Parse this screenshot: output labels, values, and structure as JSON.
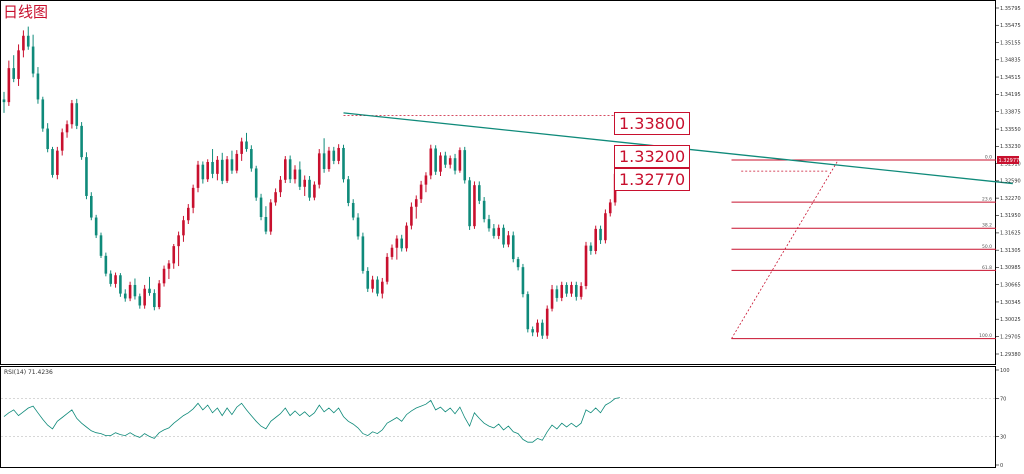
{
  "chart_data": [
    {
      "type": "candlestick",
      "title": "日线图",
      "colors": {
        "up": "#c8102e",
        "down": "#0f8a7a",
        "trendline": "#0f8a7a",
        "fib": "#c8102e"
      },
      "y_ticks": [
        "1.35795",
        "1.35475",
        "1.35155",
        "1.34835",
        "1.34515",
        "1.34195",
        "1.33875",
        "1.33550",
        "1.33230",
        "1.32910",
        "1.32590",
        "1.32270",
        "1.31950",
        "1.31625",
        "1.31305",
        "1.30985",
        "1.30665",
        "1.30345",
        "1.30025",
        "1.29705",
        "1.29380"
      ],
      "ylim": [
        1.2938,
        1.35795
      ],
      "current_price": "1.32977",
      "annotations": [
        "1.33800",
        "1.33200",
        "1.32770"
      ],
      "fib_levels": [
        {
          "label": "0.0",
          "price": 1.32977
        },
        {
          "label": "23.6",
          "price": 1.32195
        },
        {
          "label": "38.2",
          "price": 1.31712
        },
        {
          "label": "50.0",
          "price": 1.31321
        },
        {
          "label": "61.8",
          "price": 1.3093
        },
        {
          "label": "100.0",
          "price": 1.29665
        }
      ],
      "trendline": [
        {
          "x": 70,
          "y": 1.3385
        },
        {
          "x": 208,
          "y": 1.3254
        }
      ],
      "fib_start": {
        "x": 150,
        "y": 1.29665
      },
      "fib_end": {
        "x": 172,
        "y": 1.32977
      },
      "reference_lines": [
        {
          "x1": 70,
          "x2": 132,
          "y": 1.338
        },
        {
          "x1": 152,
          "x2": 170,
          "y": 1.3277
        }
      ],
      "candles": [
        [
          1.341,
          1.3424,
          1.3385,
          1.3405
        ],
        [
          1.3405,
          1.3482,
          1.3398,
          1.3468
        ],
        [
          1.3468,
          1.3492,
          1.3442,
          1.3448
        ],
        [
          1.3448,
          1.3512,
          1.3435,
          1.3501
        ],
        [
          1.3501,
          1.3538,
          1.3488,
          1.3528
        ],
        [
          1.3528,
          1.3545,
          1.3502,
          1.3508
        ],
        [
          1.3508,
          1.353,
          1.3451,
          1.3458
        ],
        [
          1.3458,
          1.347,
          1.3402,
          1.341
        ],
        [
          1.341,
          1.3415,
          1.335,
          1.3356
        ],
        [
          1.3356,
          1.3366,
          1.3312,
          1.3318
        ],
        [
          1.3318,
          1.3322,
          1.3265,
          1.327
        ],
        [
          1.327,
          1.3322,
          1.3262,
          1.3315
        ],
        [
          1.3315,
          1.3356,
          1.3306,
          1.3349
        ],
        [
          1.3349,
          1.3371,
          1.3339,
          1.3364
        ],
        [
          1.3364,
          1.3409,
          1.3356,
          1.3403
        ],
        [
          1.3403,
          1.3411,
          1.3355,
          1.3361
        ],
        [
          1.3361,
          1.3368,
          1.3298,
          1.3303
        ],
        [
          1.3303,
          1.3312,
          1.3225,
          1.3231
        ],
        [
          1.3231,
          1.3238,
          1.3186,
          1.3191
        ],
        [
          1.3191,
          1.3196,
          1.3153,
          1.3158
        ],
        [
          1.3158,
          1.3163,
          1.3116,
          1.312
        ],
        [
          1.312,
          1.3126,
          1.3082,
          1.3087
        ],
        [
          1.3087,
          1.3093,
          1.3063,
          1.3068
        ],
        [
          1.3068,
          1.3089,
          1.3061,
          1.3084
        ],
        [
          1.3084,
          1.3088,
          1.3044,
          1.305
        ],
        [
          1.305,
          1.3058,
          1.3035,
          1.3041
        ],
        [
          1.3041,
          1.3072,
          1.3036,
          1.3066
        ],
        [
          1.3066,
          1.3078,
          1.3039,
          1.3045
        ],
        [
          1.3045,
          1.305,
          1.3022,
          1.3028
        ],
        [
          1.3028,
          1.3066,
          1.3022,
          1.3059
        ],
        [
          1.3059,
          1.3081,
          1.3046,
          1.3051
        ],
        [
          1.3051,
          1.3058,
          1.3019,
          1.3025
        ],
        [
          1.3025,
          1.3075,
          1.3021,
          1.3069
        ],
        [
          1.3069,
          1.3102,
          1.3063,
          1.3096
        ],
        [
          1.3096,
          1.3112,
          1.3077,
          1.3106
        ],
        [
          1.3106,
          1.3142,
          1.3096,
          1.3138
        ],
        [
          1.3138,
          1.3165,
          1.3101,
          1.3158
        ],
        [
          1.3158,
          1.3194,
          1.3146,
          1.3186
        ],
        [
          1.3186,
          1.3216,
          1.3179,
          1.3209
        ],
        [
          1.3209,
          1.3252,
          1.3199,
          1.3246
        ],
        [
          1.3246,
          1.3296,
          1.3238,
          1.3289
        ],
        [
          1.3289,
          1.3295,
          1.3254,
          1.3262
        ],
        [
          1.3262,
          1.3299,
          1.3257,
          1.3294
        ],
        [
          1.3294,
          1.3318,
          1.3264,
          1.3272
        ],
        [
          1.3272,
          1.3305,
          1.326,
          1.3298
        ],
        [
          1.3298,
          1.3311,
          1.3253,
          1.3259
        ],
        [
          1.3259,
          1.3305,
          1.3255,
          1.3299
        ],
        [
          1.3299,
          1.3315,
          1.3272,
          1.3278
        ],
        [
          1.3278,
          1.3316,
          1.3273,
          1.3309
        ],
        [
          1.3309,
          1.3339,
          1.3296,
          1.3332
        ],
        [
          1.3332,
          1.3348,
          1.3313,
          1.3318
        ],
        [
          1.3318,
          1.3325,
          1.3276,
          1.3282
        ],
        [
          1.3282,
          1.3287,
          1.3222,
          1.3228
        ],
        [
          1.3228,
          1.3235,
          1.3186,
          1.3192
        ],
        [
          1.3192,
          1.3212,
          1.316,
          1.3165
        ],
        [
          1.3165,
          1.3225,
          1.3159,
          1.3219
        ],
        [
          1.3219,
          1.3245,
          1.3213,
          1.3238
        ],
        [
          1.3238,
          1.3268,
          1.3229,
          1.3261
        ],
        [
          1.3261,
          1.3305,
          1.3255,
          1.3299
        ],
        [
          1.3299,
          1.3306,
          1.3255,
          1.3262
        ],
        [
          1.3262,
          1.3288,
          1.3254,
          1.328
        ],
        [
          1.328,
          1.3295,
          1.3242,
          1.3248
        ],
        [
          1.3248,
          1.3269,
          1.3231,
          1.3261
        ],
        [
          1.3261,
          1.3268,
          1.3222,
          1.3228
        ],
        [
          1.3228,
          1.3258,
          1.3223,
          1.3252
        ],
        [
          1.3252,
          1.3318,
          1.3245,
          1.331
        ],
        [
          1.331,
          1.3338,
          1.3274,
          1.3281
        ],
        [
          1.3281,
          1.3322,
          1.3276,
          1.3315
        ],
        [
          1.3315,
          1.3322,
          1.329,
          1.3296
        ],
        [
          1.3296,
          1.3327,
          1.329,
          1.332
        ],
        [
          1.332,
          1.3326,
          1.3256,
          1.3262
        ],
        [
          1.3262,
          1.3268,
          1.3212,
          1.3218
        ],
        [
          1.3218,
          1.3225,
          1.3186,
          1.3191
        ],
        [
          1.3191,
          1.3199,
          1.315,
          1.3156
        ],
        [
          1.3156,
          1.3163,
          1.3087,
          1.3092
        ],
        [
          1.3092,
          1.3099,
          1.3053,
          1.3059
        ],
        [
          1.3059,
          1.3083,
          1.3052,
          1.3076
        ],
        [
          1.3076,
          1.3082,
          1.3045,
          1.305
        ],
        [
          1.305,
          1.3079,
          1.3041,
          1.3072
        ],
        [
          1.3072,
          1.3125,
          1.3067,
          1.3118
        ],
        [
          1.3118,
          1.3141,
          1.3113,
          1.3135
        ],
        [
          1.3135,
          1.3158,
          1.3113,
          1.3152
        ],
        [
          1.3152,
          1.3159,
          1.3128,
          1.3134
        ],
        [
          1.3134,
          1.3182,
          1.3128,
          1.3176
        ],
        [
          1.3176,
          1.3219,
          1.3169,
          1.3211
        ],
        [
          1.3211,
          1.3232,
          1.3189,
          1.3225
        ],
        [
          1.3225,
          1.3259,
          1.3218,
          1.3252
        ],
        [
          1.3252,
          1.3275,
          1.3238,
          1.3269
        ],
        [
          1.3269,
          1.3326,
          1.3262,
          1.3319
        ],
        [
          1.3319,
          1.3325,
          1.327,
          1.3276
        ],
        [
          1.3276,
          1.3312,
          1.3268,
          1.3306
        ],
        [
          1.3306,
          1.3313,
          1.3283,
          1.3289
        ],
        [
          1.3289,
          1.3306,
          1.3282,
          1.3301
        ],
        [
          1.3301,
          1.3309,
          1.3271,
          1.3278
        ],
        [
          1.3278,
          1.3321,
          1.3274,
          1.3316
        ],
        [
          1.3316,
          1.3322,
          1.3254,
          1.326
        ],
        [
          1.326,
          1.3266,
          1.3168,
          1.3175
        ],
        [
          1.3175,
          1.3258,
          1.317,
          1.3251
        ],
        [
          1.3251,
          1.3258,
          1.3216,
          1.3222
        ],
        [
          1.3222,
          1.3229,
          1.3182,
          1.3188
        ],
        [
          1.3188,
          1.3196,
          1.3165,
          1.3171
        ],
        [
          1.3171,
          1.3179,
          1.3152,
          1.3157
        ],
        [
          1.3157,
          1.3178,
          1.3151,
          1.3172
        ],
        [
          1.3172,
          1.3178,
          1.3135,
          1.3141
        ],
        [
          1.3141,
          1.3166,
          1.3136,
          1.3158
        ],
        [
          1.3158,
          1.3165,
          1.3108,
          1.3114
        ],
        [
          1.3114,
          1.3118,
          1.3093,
          1.3099
        ],
        [
          1.3099,
          1.3105,
          1.3043,
          1.3049
        ],
        [
          1.3049,
          1.3054,
          1.2978,
          1.2984
        ],
        [
          1.2984,
          1.2989,
          1.2971,
          1.2978
        ],
        [
          1.2978,
          1.3002,
          1.297,
          1.2996
        ],
        [
          1.2996,
          1.3002,
          1.2966,
          1.2972
        ],
        [
          1.2972,
          1.3028,
          1.2966,
          1.3022
        ],
        [
          1.3022,
          1.3066,
          1.3017,
          1.3058
        ],
        [
          1.3058,
          1.3065,
          1.3035,
          1.3042
        ],
        [
          1.3042,
          1.3072,
          1.3036,
          1.3066
        ],
        [
          1.3066,
          1.3071,
          1.3044,
          1.305
        ],
        [
          1.305,
          1.3072,
          1.3044,
          1.3066
        ],
        [
          1.3066,
          1.3072,
          1.3037,
          1.3044
        ],
        [
          1.3044,
          1.3071,
          1.3039,
          1.3064
        ],
        [
          1.3064,
          1.3146,
          1.3058,
          1.3139
        ],
        [
          1.3139,
          1.3145,
          1.3122,
          1.3129
        ],
        [
          1.3129,
          1.3176,
          1.3123,
          1.317
        ],
        [
          1.317,
          1.3176,
          1.3142,
          1.3149
        ],
        [
          1.3149,
          1.3206,
          1.3143,
          1.3199
        ],
        [
          1.3199,
          1.3225,
          1.3193,
          1.3219
        ],
        [
          1.3219,
          1.3279,
          1.3213,
          1.3272
        ],
        [
          1.3272,
          1.3291,
          1.3265,
          1.3285
        ]
      ]
    },
    {
      "type": "line",
      "title": "RSI(14) 71.4236",
      "y_ticks": [
        "100",
        "70",
        "30",
        "0"
      ],
      "ylim": [
        0,
        100
      ],
      "values": [
        51,
        55,
        58,
        52,
        56,
        60,
        62,
        55,
        48,
        42,
        38,
        46,
        50,
        54,
        58,
        49,
        44,
        40,
        36,
        34,
        33,
        31,
        31,
        34,
        32,
        31,
        34,
        31,
        29,
        33,
        30,
        28,
        34,
        37,
        39,
        44,
        48,
        52,
        55,
        59,
        65,
        58,
        63,
        55,
        60,
        52,
        60,
        53,
        61,
        65,
        58,
        52,
        46,
        41,
        38,
        46,
        50,
        54,
        60,
        52,
        57,
        52,
        56,
        51,
        55,
        63,
        56,
        60,
        55,
        60,
        51,
        46,
        43,
        39,
        33,
        31,
        35,
        33,
        37,
        44,
        47,
        50,
        46,
        53,
        57,
        60,
        62,
        64,
        68,
        58,
        61,
        56,
        60,
        54,
        61,
        50,
        41,
        55,
        49,
        44,
        41,
        39,
        43,
        37,
        41,
        35,
        33,
        27,
        24,
        24,
        28,
        26,
        35,
        42,
        38,
        44,
        40,
        44,
        40,
        44,
        58,
        55,
        60,
        55,
        63,
        66,
        70,
        71
      ]
    }
  ]
}
